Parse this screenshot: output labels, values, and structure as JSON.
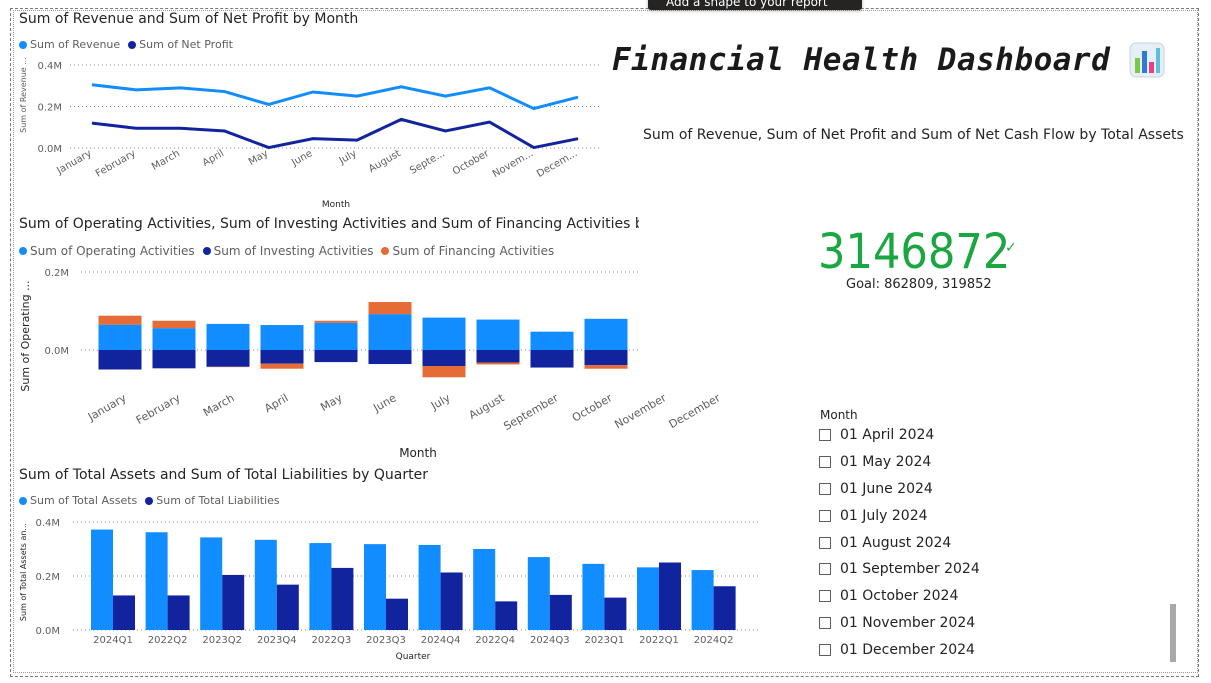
{
  "tooltip": "Add a shape to your report",
  "dashboard": {
    "title": "Financial Health Dashboard",
    "icon": "bar-chart-icon"
  },
  "colors": {
    "revenue": "#118DFF",
    "net_profit": "#12239E",
    "financing": "#E66C37",
    "kpi_green": "#1AA742"
  },
  "chart1": {
    "title": "Sum of Revenue and Sum of Net Profit by Month",
    "legend": [
      "Sum of Revenue",
      "Sum of Net Profit"
    ],
    "y_label": "Sum of Revenue ...",
    "x_label": "Month",
    "y_ticks": [
      "0.4M",
      "0.2M",
      "0.0M"
    ],
    "x_ticks": [
      "January",
      "February",
      "March",
      "April",
      "May",
      "June",
      "July",
      "August",
      "Septe...",
      "October",
      "Novem...",
      "Decem..."
    ]
  },
  "chart2": {
    "title": "Sum of Operating Activities, Sum of Investing Activities and Sum of Financing Activities by Month",
    "legend": [
      "Sum of Operating Activities",
      "Sum of Investing Activities",
      "Sum of Financing Activities"
    ],
    "y_label": "Sum of Operating ...",
    "x_label": "Month",
    "y_ticks": [
      "0.2M",
      "0.0M"
    ],
    "x_ticks": [
      "January",
      "February",
      "March",
      "April",
      "May",
      "June",
      "July",
      "August",
      "September",
      "October",
      "November",
      "December"
    ]
  },
  "chart3": {
    "title": "Sum of Total Assets and Sum of Total Liabilities by Quarter",
    "legend": [
      "Sum of Total Assets",
      "Sum of Total Liabilities"
    ],
    "y_label": "Sum of Total Assets an...",
    "x_label": "Quarter",
    "y_ticks": [
      "0.4M",
      "0.2M",
      "0.0M"
    ],
    "x_ticks": [
      "2024Q1",
      "2022Q2",
      "2023Q2",
      "2023Q4",
      "2022Q3",
      "2023Q3",
      "2024Q4",
      "2022Q4",
      "2024Q3",
      "2023Q1",
      "2022Q1",
      "2024Q2"
    ]
  },
  "kpi": {
    "title": "Sum of Revenue, Sum of Net Profit and Sum of Net Cash Flow by Total Assets",
    "value": "3146872",
    "goal": "Goal: 862809, 319852",
    "status_icon": "check-icon"
  },
  "slicer": {
    "title": "Month",
    "items": [
      "01 April 2024",
      "01 May 2024",
      "01 June 2024",
      "01 July 2024",
      "01 August 2024",
      "01 September 2024",
      "01 October 2024",
      "01 November 2024",
      "01 December 2024"
    ]
  },
  "chart_data": [
    {
      "type": "line",
      "title": "Sum of Revenue and Sum of Net Profit by Month",
      "xlabel": "Month",
      "ylabel": "Sum of Revenue ...",
      "ylim": [
        0,
        400000
      ],
      "grid": true,
      "legend": "top-left",
      "categories": [
        "January",
        "February",
        "March",
        "April",
        "May",
        "June",
        "July",
        "August",
        "Septe...",
        "October",
        "Novem...",
        "Decem..."
      ],
      "series": [
        {
          "name": "Sum of Revenue",
          "values": [
            305000,
            280000,
            290000,
            272000,
            210000,
            270000,
            250000,
            295000,
            250000,
            290000,
            190000,
            245000
          ]
        },
        {
          "name": "Sum of Net Profit",
          "values": [
            120000,
            95000,
            95000,
            82000,
            2000,
            45000,
            38000,
            138000,
            82000,
            125000,
            2000,
            45000
          ]
        }
      ]
    },
    {
      "type": "bar",
      "title": "Sum of Operating Activities, Sum of Investing Activities and Sum of Financing Activities by Month",
      "xlabel": "Month",
      "ylabel": "Sum of Operating ...",
      "grid": true,
      "legend": "top-left",
      "categories": [
        "January",
        "February",
        "March",
        "April",
        "May",
        "June",
        "July",
        "August",
        "September",
        "October",
        "November",
        "December"
      ],
      "series": [
        {
          "name": "Sum of Operating Activities",
          "values": [
            65000,
            56000,
            67000,
            64000,
            70000,
            92000,
            83000,
            78000,
            47000,
            80000,
            null,
            null
          ]
        },
        {
          "name": "Sum of Investing Activities",
          "values": [
            -50000,
            -47000,
            -43000,
            -35000,
            -31000,
            -36000,
            -41000,
            -32000,
            -45000,
            -39000,
            null,
            null
          ]
        },
        {
          "name": "Sum of Financing Activities",
          "values": [
            23000,
            19000,
            -1000,
            -13000,
            5000,
            31000,
            -29000,
            -5000,
            0,
            -9000,
            null,
            null
          ]
        }
      ]
    },
    {
      "type": "bar",
      "title": "Sum of Total Assets and Sum of Total Liabilities by Quarter",
      "xlabel": "Quarter",
      "ylabel": "Sum of Total Assets an...",
      "ylim": [
        0,
        400000
      ],
      "grid": true,
      "legend": "top-left",
      "categories": [
        "2024Q1",
        "2022Q2",
        "2023Q2",
        "2023Q4",
        "2022Q3",
        "2023Q3",
        "2024Q4",
        "2022Q4",
        "2024Q3",
        "2023Q1",
        "2022Q1",
        "2024Q2"
      ],
      "series": [
        {
          "name": "Sum of Total Assets",
          "values": [
            372000,
            362000,
            343000,
            334000,
            322000,
            318000,
            315000,
            300000,
            270000,
            245000,
            232000,
            222000
          ]
        },
        {
          "name": "Sum of Total Liabilities",
          "values": [
            128000,
            128000,
            204000,
            168000,
            230000,
            116000,
            213000,
            106000,
            130000,
            120000,
            250000,
            162000
          ]
        }
      ]
    }
  ]
}
